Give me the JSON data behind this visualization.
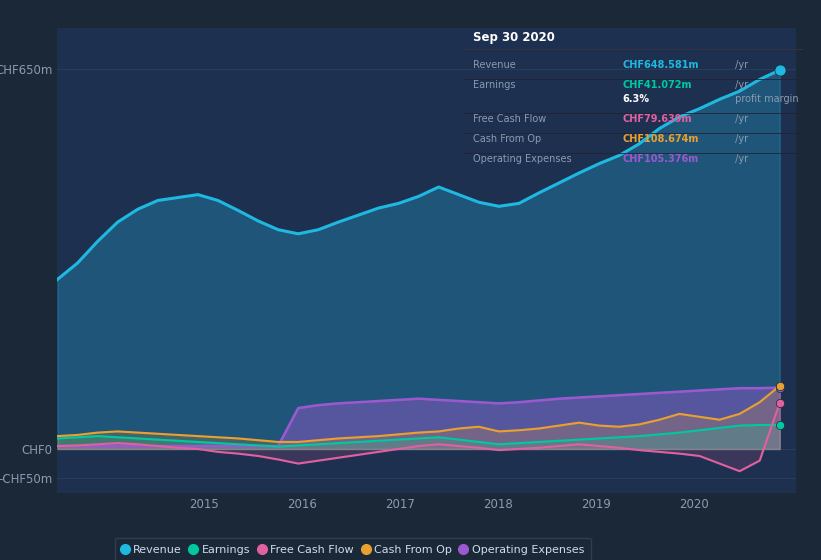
{
  "bg_color": "#1b2838",
  "plot_bg_color": "#1e3050",
  "grid_color": "#2a3f55",
  "text_color": "#8a9bb0",
  "ylim_min": -75,
  "ylim_max": 720,
  "xlim_min": 2013.5,
  "xlim_max": 2021.05,
  "ytick_vals": [
    -50,
    0,
    650
  ],
  "ytick_labels": [
    "-CHF50m",
    "CHF0",
    "CHF650m"
  ],
  "xtick_vals": [
    2015,
    2016,
    2017,
    2018,
    2019,
    2020
  ],
  "series": {
    "Revenue": {
      "color": "#1eb8e0",
      "linewidth": 2.2,
      "values": [
        290,
        318,
        355,
        388,
        410,
        425,
        430,
        435,
        425,
        408,
        390,
        375,
        368,
        375,
        388,
        400,
        412,
        420,
        432,
        448,
        435,
        422,
        415,
        420,
        438,
        455,
        472,
        488,
        502,
        522,
        548,
        568,
        582,
        598,
        612,
        632,
        648
      ]
    },
    "Operating Expenses": {
      "color": "#9b59d0",
      "linewidth": 1.8,
      "values": [
        5,
        5,
        5,
        5,
        5,
        5,
        5,
        5,
        5,
        5,
        5,
        5,
        70,
        75,
        78,
        80,
        82,
        84,
        86,
        84,
        82,
        80,
        78,
        80,
        83,
        86,
        88,
        90,
        92,
        94,
        96,
        98,
        100,
        102,
        104,
        104,
        105
      ]
    },
    "Earnings": {
      "color": "#00c8a0",
      "linewidth": 1.5,
      "values": [
        18,
        20,
        22,
        20,
        18,
        16,
        14,
        12,
        10,
        8,
        6,
        4,
        6,
        8,
        10,
        12,
        14,
        16,
        18,
        20,
        16,
        12,
        8,
        10,
        12,
        14,
        16,
        18,
        20,
        22,
        25,
        28,
        32,
        36,
        40,
        41,
        41
      ]
    },
    "Cash From Op": {
      "color": "#e8a030",
      "linewidth": 1.5,
      "values": [
        22,
        24,
        28,
        30,
        28,
        26,
        24,
        22,
        20,
        18,
        15,
        12,
        12,
        15,
        18,
        20,
        22,
        25,
        28,
        30,
        35,
        38,
        30,
        32,
        35,
        40,
        45,
        40,
        38,
        42,
        50,
        60,
        55,
        50,
        60,
        80,
        108
      ]
    },
    "Free Cash Flow": {
      "color": "#e060a0",
      "linewidth": 1.5,
      "values": [
        5,
        6,
        8,
        10,
        8,
        5,
        2,
        0,
        -5,
        -8,
        -12,
        -18,
        -25,
        -20,
        -15,
        -10,
        -5,
        0,
        5,
        8,
        5,
        2,
        -2,
        0,
        2,
        5,
        8,
        5,
        2,
        -2,
        -5,
        -8,
        -12,
        -25,
        -38,
        -20,
        79
      ]
    }
  },
  "tooltip": {
    "title": "Sep 30 2020",
    "rows": [
      {
        "label": "Revenue",
        "value": "CHF648.581m",
        "suffix": " /yr",
        "color": "#1eb8e0"
      },
      {
        "label": "Earnings",
        "value": "CHF41.072m",
        "suffix": " /yr",
        "color": "#00c8a0"
      },
      {
        "label": "",
        "value": "6.3%",
        "suffix": " profit margin",
        "color": "#ffffff"
      },
      {
        "label": "Free Cash Flow",
        "value": "CHF79.639m",
        "suffix": " /yr",
        "color": "#e060a0"
      },
      {
        "label": "Cash From Op",
        "value": "CHF108.674m",
        "suffix": " /yr",
        "color": "#e8a030"
      },
      {
        "label": "Operating Expenses",
        "value": "CHF105.376m",
        "suffix": " /yr",
        "color": "#9b59d0"
      }
    ]
  },
  "legend": [
    {
      "label": "Revenue",
      "color": "#1eb8e0"
    },
    {
      "label": "Earnings",
      "color": "#00c8a0"
    },
    {
      "label": "Free Cash Flow",
      "color": "#e060a0"
    },
    {
      "label": "Cash From Op",
      "color": "#e8a030"
    },
    {
      "label": "Operating Expenses",
      "color": "#9b59d0"
    }
  ]
}
